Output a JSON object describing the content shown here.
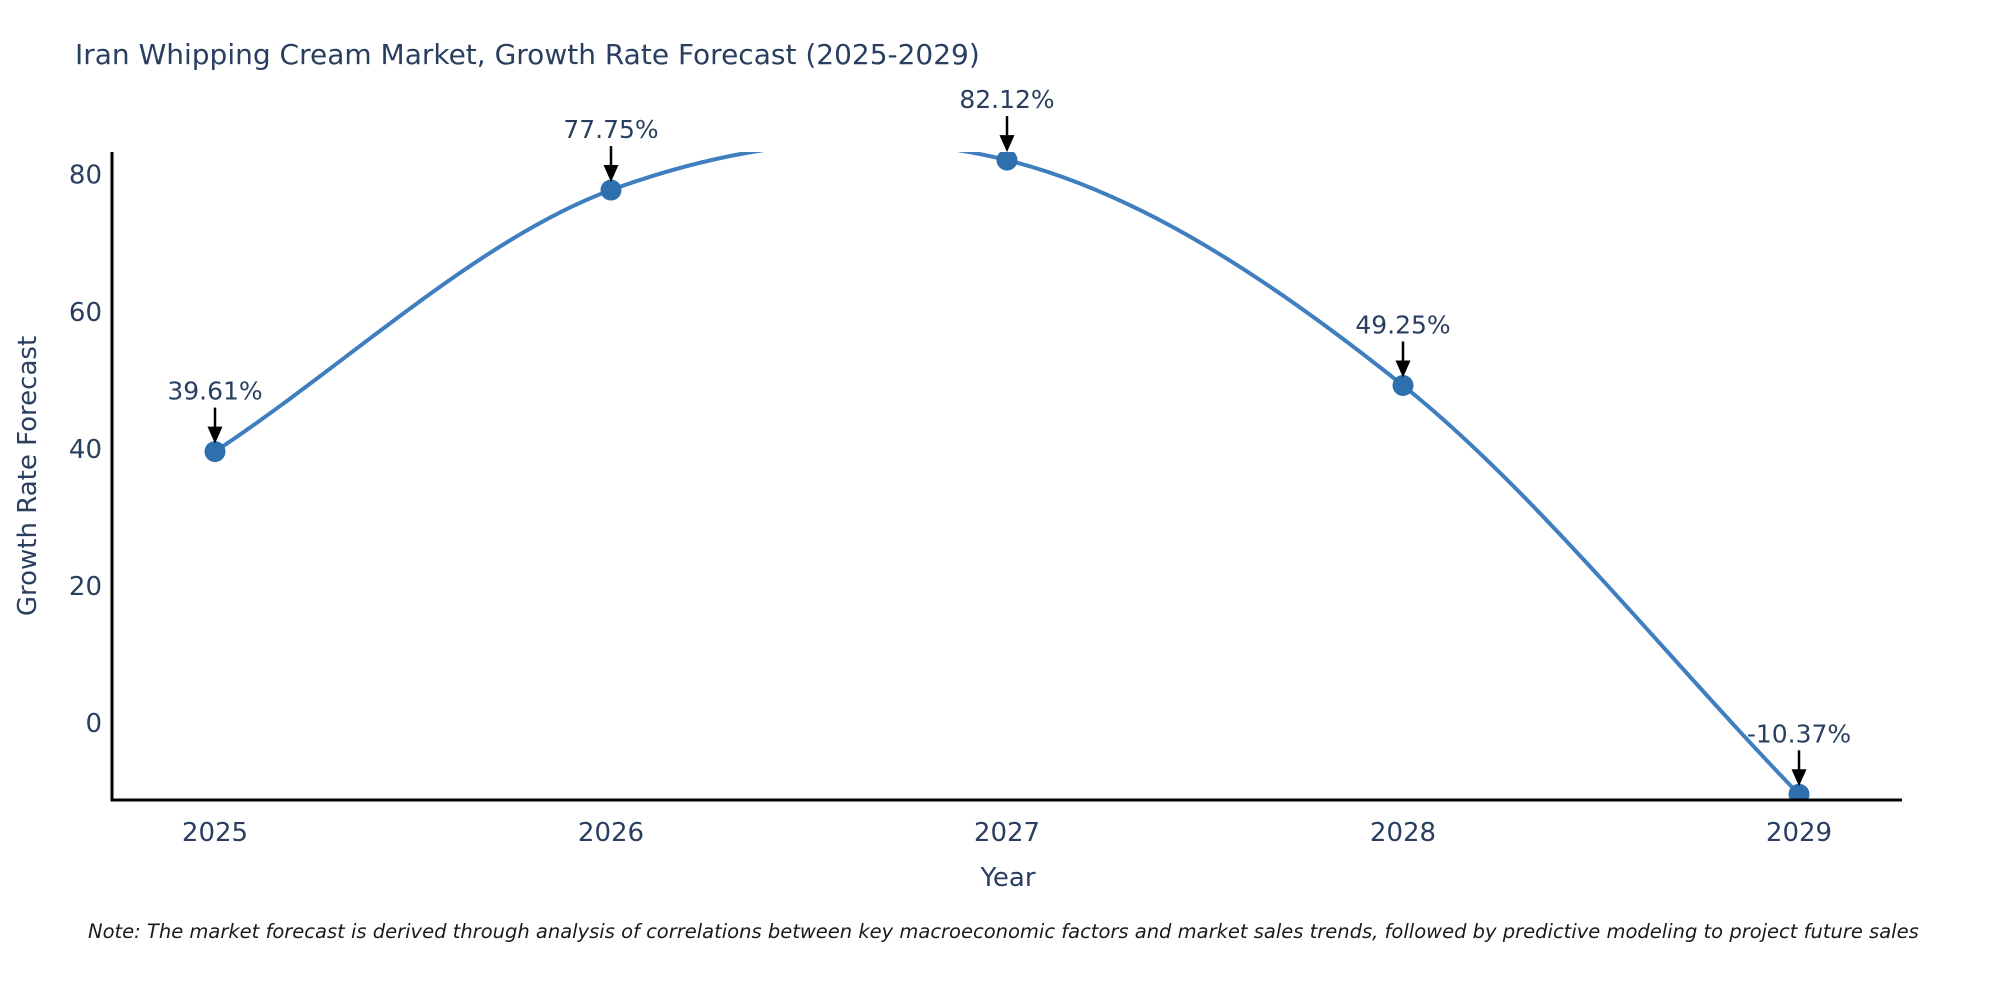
{
  "chart_data": {
    "type": "line",
    "title": "Iran Whipping Cream Market, Growth Rate Forecast (2025-2029)",
    "xlabel": "Year",
    "ylabel": "Growth Rate Forecast",
    "categories": [
      2025,
      2026,
      2027,
      2028,
      2029
    ],
    "values": [
      39.61,
      77.75,
      82.12,
      49.25,
      -10.37
    ],
    "point_labels": [
      "39.61%",
      "77.75%",
      "82.12%",
      "49.25%",
      "-10.37%"
    ],
    "yticks": [
      0,
      20,
      40,
      60,
      80
    ],
    "ylim": [
      -11.2,
      83.3
    ],
    "grid": false,
    "legend": "none",
    "line_color": "#3f7fbf",
    "marker_color": "#2e6fad",
    "axis_color": "#000000",
    "text_color": "#2a3f5f",
    "annotation_arrow_color": "#000000",
    "note": "Note: The market forecast is derived through analysis of correlations between key macroeconomic factors and market sales trends, followed by predictive modeling to project future sales"
  }
}
